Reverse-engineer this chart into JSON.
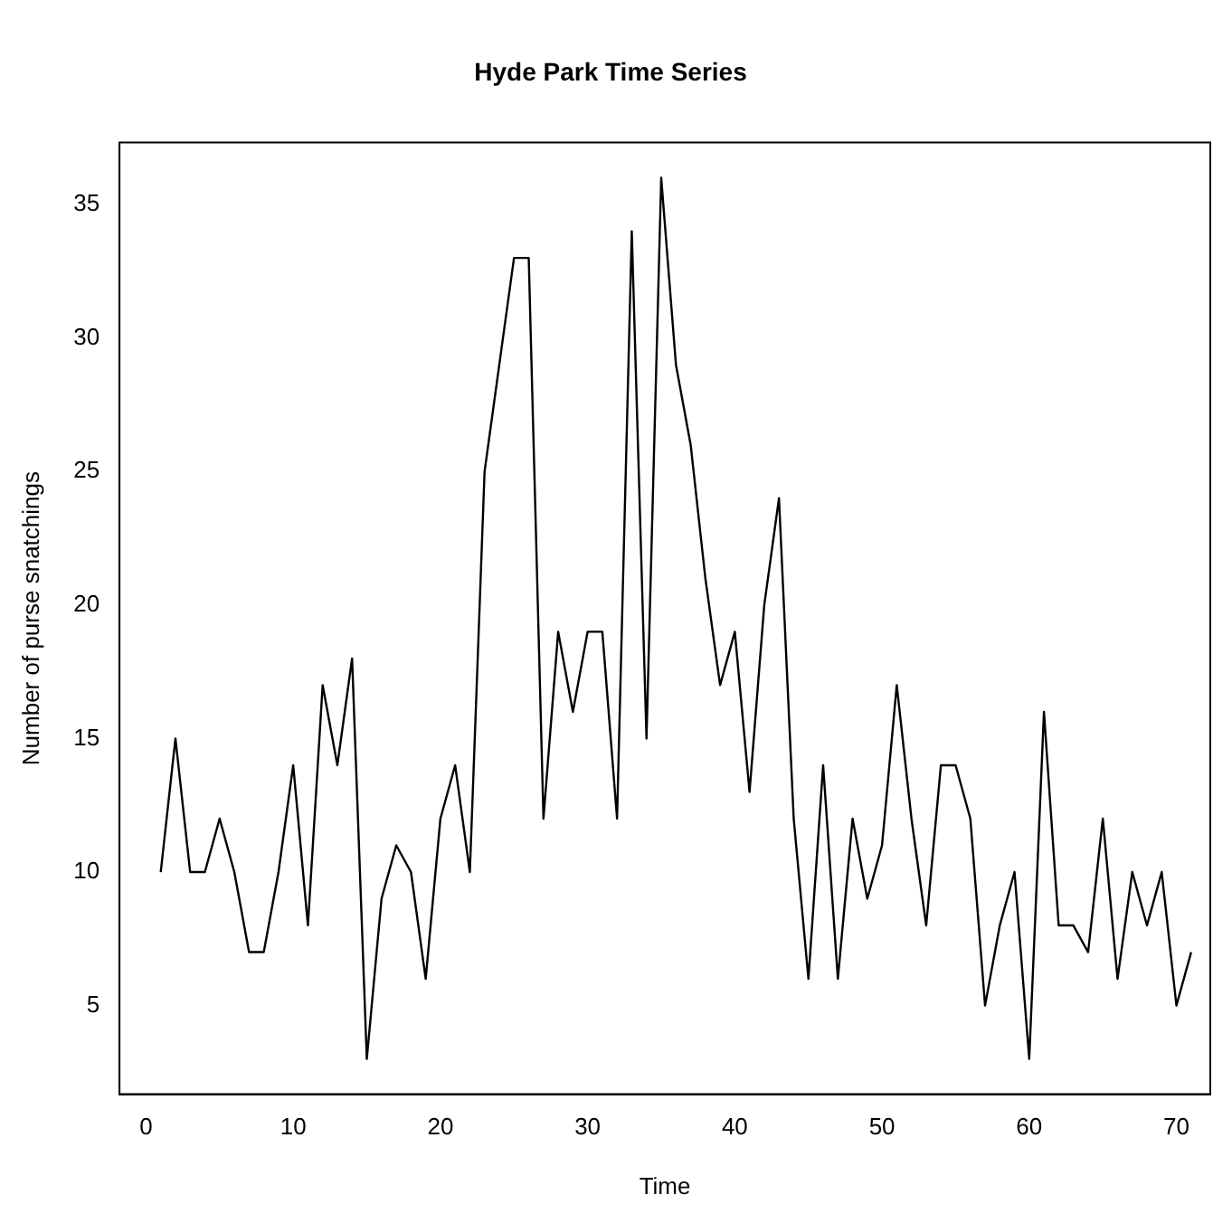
{
  "chart_data": {
    "type": "line",
    "title": "Hyde Park Time Series",
    "xlabel": "Time",
    "ylabel": "Number of purse snatchings",
    "x": [
      1,
      2,
      3,
      4,
      5,
      6,
      7,
      8,
      9,
      10,
      11,
      12,
      13,
      14,
      15,
      16,
      17,
      18,
      19,
      20,
      21,
      22,
      23,
      24,
      25,
      26,
      27,
      28,
      29,
      30,
      31,
      32,
      33,
      34,
      35,
      36,
      37,
      38,
      39,
      40,
      41,
      42,
      43,
      44,
      45,
      46,
      47,
      48,
      49,
      50,
      51,
      52,
      53,
      54,
      55,
      56,
      57,
      58,
      59,
      60,
      61,
      62,
      63,
      64,
      65,
      66,
      67,
      68,
      69,
      70,
      71
    ],
    "series": [
      {
        "color": "#000000",
        "values": [
          10,
          15,
          10,
          10,
          12,
          10,
          7,
          7,
          10,
          14,
          8,
          17,
          14,
          18,
          3,
          9,
          11,
          10,
          6,
          12,
          14,
          10,
          25,
          29,
          33,
          33,
          12,
          19,
          16,
          19,
          19,
          12,
          34,
          15,
          36,
          29,
          26,
          21,
          17,
          19,
          13,
          20,
          24,
          12,
          6,
          14,
          6,
          12,
          9,
          11,
          17,
          12,
          8,
          14,
          14,
          12,
          5,
          8,
          10,
          3,
          16,
          8,
          8,
          7,
          12,
          6,
          10,
          8,
          10,
          5,
          7
        ]
      }
    ],
    "xlim": [
      -1.8,
      72.3
    ],
    "ylim": [
      1.68,
      37.32
    ],
    "xticks": [
      0,
      10,
      20,
      30,
      40,
      50,
      60,
      70
    ],
    "yticks": [
      5,
      10,
      15,
      20,
      25,
      30,
      35
    ],
    "grid": false,
    "legend": false,
    "marker": "none",
    "line_style": "solid"
  }
}
